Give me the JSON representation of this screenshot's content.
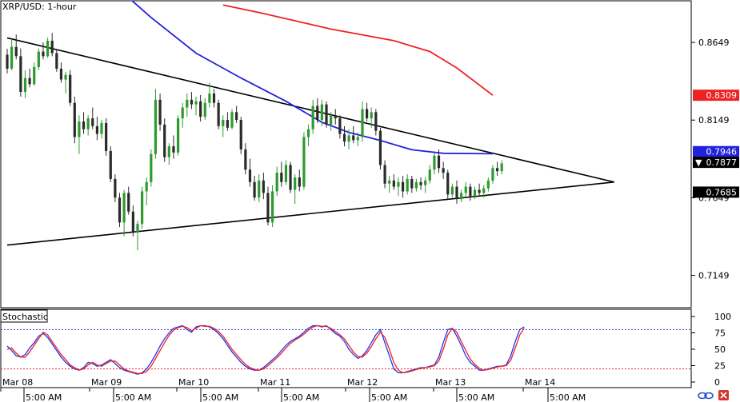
{
  "header": {
    "title": "XRP/USD: 1-hour"
  },
  "colors": {
    "bull_candle": "#2e9a2e",
    "bear_candle": "#2a2a2a",
    "ma_fast": "#2222dd",
    "ma_slow": "#ee2222",
    "trendline": "#000000",
    "stoch_k": "#2233ee",
    "stoch_d": "#ee2222"
  },
  "chart_data": [
    {
      "type": "candlestick",
      "title": "XRP/USD: 1-hour",
      "x_ticks": [
        "Mar 08",
        "5:00 AM",
        "Mar 09",
        "5:00 AM",
        "Mar 10",
        "5:00 AM",
        "Mar 11",
        "5:00 AM",
        "Mar 12",
        "5:00 AM",
        "Mar 13",
        "5:00 AM",
        "Mar 14",
        "5:00 AM"
      ],
      "y_ticks": [
        "0.8649",
        "0.8149",
        "0.7649",
        "0.7149"
      ],
      "ylim": [
        0.6941,
        0.8917
      ],
      "price_badges": [
        {
          "label": "0.8309",
          "value": 0.8309,
          "color": "#ee2222",
          "text_color": "#ffffff",
          "marker": ""
        },
        {
          "label": "0.7946",
          "value": 0.7946,
          "color": "#2222dd",
          "text_color": "#ffffff",
          "marker": ""
        },
        {
          "label": "0.7877",
          "value": 0.7877,
          "color": "#000000",
          "text_color": "#ffffff",
          "marker": "▼"
        },
        {
          "label": "0.7685",
          "value": 0.7685,
          "color": "#000000",
          "text_color": "#ffffff",
          "marker": ""
        }
      ],
      "trendlines": [
        {
          "from": [
            0,
            0.8678
          ],
          "to": [
            135,
            0.775
          ]
        },
        {
          "from": [
            0,
            0.7344
          ],
          "to": [
            135,
            0.775
          ]
        }
      ],
      "moving_averages": [
        {
          "color": "ma_fast",
          "points": [
            [
              0,
              0.915
            ],
            [
              20,
              0.9115
            ],
            [
              32,
              0.881
            ],
            [
              42,
              0.858
            ],
            [
              52,
              0.842
            ],
            [
              62,
              0.827
            ],
            [
              70,
              0.8135
            ],
            [
              76,
              0.807
            ],
            [
              83,
              0.8018
            ],
            [
              90,
              0.7958
            ],
            [
              97,
              0.7935
            ],
            [
              108,
              0.7932
            ]
          ]
        },
        {
          "color": "ma_slow",
          "points": [
            [
              48,
              0.889
            ],
            [
              57,
              0.8835
            ],
            [
              72,
              0.8735
            ],
            [
              86,
              0.866
            ],
            [
              94,
              0.859
            ],
            [
              100,
              0.8485
            ],
            [
              108,
              0.8309
            ]
          ]
        }
      ],
      "candles": [
        [
          0.857,
          0.8608,
          0.845,
          0.848
        ],
        [
          0.848,
          0.867,
          0.847,
          0.862
        ],
        [
          0.862,
          0.87,
          0.854,
          0.856
        ],
        [
          0.856,
          0.861,
          0.83,
          0.833
        ],
        [
          0.833,
          0.847,
          0.829,
          0.842
        ],
        [
          0.842,
          0.848,
          0.836,
          0.838
        ],
        [
          0.838,
          0.852,
          0.837,
          0.849
        ],
        [
          0.849,
          0.861,
          0.847,
          0.859
        ],
        [
          0.859,
          0.865,
          0.854,
          0.856
        ],
        [
          0.856,
          0.868,
          0.855,
          0.866
        ],
        [
          0.866,
          0.871,
          0.856,
          0.858
        ],
        [
          0.858,
          0.86,
          0.846,
          0.848
        ],
        [
          0.848,
          0.852,
          0.839,
          0.841
        ],
        [
          0.841,
          0.846,
          0.832,
          0.844
        ],
        [
          0.844,
          0.847,
          0.824,
          0.826
        ],
        [
          0.826,
          0.83,
          0.8,
          0.804
        ],
        [
          0.804,
          0.818,
          0.793,
          0.814
        ],
        [
          0.814,
          0.82,
          0.806,
          0.809
        ],
        [
          0.809,
          0.818,
          0.805,
          0.816
        ],
        [
          0.816,
          0.823,
          0.809,
          0.811
        ],
        [
          0.811,
          0.817,
          0.802,
          0.806
        ],
        [
          0.806,
          0.815,
          0.803,
          0.813
        ],
        [
          0.813,
          0.816,
          0.792,
          0.795
        ],
        [
          0.795,
          0.798,
          0.775,
          0.777
        ],
        [
          0.777,
          0.78,
          0.762,
          0.765
        ],
        [
          0.765,
          0.768,
          0.746,
          0.749
        ],
        [
          0.749,
          0.77,
          0.74,
          0.768
        ],
        [
          0.768,
          0.772,
          0.754,
          0.756
        ],
        [
          0.756,
          0.76,
          0.74,
          0.743
        ],
        [
          0.743,
          0.75,
          0.731,
          0.748
        ],
        [
          0.748,
          0.772,
          0.745,
          0.769
        ],
        [
          0.769,
          0.778,
          0.76,
          0.775
        ],
        [
          0.775,
          0.796,
          0.772,
          0.793
        ],
        [
          0.793,
          0.835,
          0.79,
          0.828
        ],
        [
          0.828,
          0.832,
          0.808,
          0.812
        ],
        [
          0.812,
          0.816,
          0.788,
          0.791
        ],
        [
          0.791,
          0.8,
          0.786,
          0.798
        ],
        [
          0.798,
          0.805,
          0.79,
          0.794
        ],
        [
          0.794,
          0.818,
          0.792,
          0.816
        ],
        [
          0.816,
          0.826,
          0.81,
          0.823
        ],
        [
          0.823,
          0.832,
          0.817,
          0.828
        ],
        [
          0.828,
          0.833,
          0.822,
          0.825
        ],
        [
          0.825,
          0.83,
          0.818,
          0.827
        ],
        [
          0.827,
          0.831,
          0.814,
          0.817
        ],
        [
          0.817,
          0.829,
          0.815,
          0.826
        ],
        [
          0.826,
          0.839,
          0.823,
          0.832
        ],
        [
          0.832,
          0.835,
          0.823,
          0.826
        ],
        [
          0.826,
          0.828,
          0.809,
          0.811
        ],
        [
          0.811,
          0.818,
          0.804,
          0.815
        ],
        [
          0.815,
          0.82,
          0.808,
          0.81
        ],
        [
          0.81,
          0.822,
          0.809,
          0.82
        ],
        [
          0.82,
          0.824,
          0.813,
          0.815
        ],
        [
          0.815,
          0.817,
          0.793,
          0.796
        ],
        [
          0.796,
          0.8,
          0.78,
          0.783
        ],
        [
          0.783,
          0.79,
          0.772,
          0.775
        ],
        [
          0.775,
          0.779,
          0.763,
          0.765
        ],
        [
          0.765,
          0.78,
          0.762,
          0.776
        ],
        [
          0.776,
          0.781,
          0.764,
          0.768
        ],
        [
          0.768,
          0.772,
          0.747,
          0.749
        ],
        [
          0.749,
          0.773,
          0.746,
          0.769
        ],
        [
          0.769,
          0.785,
          0.766,
          0.781
        ],
        [
          0.781,
          0.788,
          0.772,
          0.775
        ],
        [
          0.775,
          0.789,
          0.773,
          0.786
        ],
        [
          0.786,
          0.788,
          0.768,
          0.77
        ],
        [
          0.77,
          0.78,
          0.761,
          0.778
        ],
        [
          0.778,
          0.783,
          0.769,
          0.772
        ],
        [
          0.772,
          0.807,
          0.77,
          0.804
        ],
        [
          0.804,
          0.812,
          0.798,
          0.809
        ],
        [
          0.809,
          0.828,
          0.806,
          0.824
        ],
        [
          0.824,
          0.829,
          0.813,
          0.815
        ],
        [
          0.815,
          0.828,
          0.811,
          0.825
        ],
        [
          0.825,
          0.827,
          0.81,
          0.812
        ],
        [
          0.812,
          0.82,
          0.808,
          0.818
        ],
        [
          0.818,
          0.822,
          0.812,
          0.816
        ],
        [
          0.816,
          0.818,
          0.803,
          0.806
        ],
        [
          0.806,
          0.811,
          0.798,
          0.801
        ],
        [
          0.801,
          0.809,
          0.796,
          0.805
        ],
        [
          0.805,
          0.811,
          0.8,
          0.802
        ],
        [
          0.802,
          0.807,
          0.798,
          0.804
        ],
        [
          0.804,
          0.827,
          0.801,
          0.822
        ],
        [
          0.822,
          0.826,
          0.814,
          0.816
        ],
        [
          0.816,
          0.823,
          0.81,
          0.82
        ],
        [
          0.82,
          0.822,
          0.805,
          0.808
        ],
        [
          0.808,
          0.81,
          0.783,
          0.786
        ],
        [
          0.786,
          0.789,
          0.771,
          0.774
        ],
        [
          0.774,
          0.779,
          0.768,
          0.776
        ],
        [
          0.776,
          0.78,
          0.77,
          0.772
        ],
        [
          0.772,
          0.778,
          0.766,
          0.775
        ],
        [
          0.775,
          0.779,
          0.765,
          0.769
        ],
        [
          0.769,
          0.78,
          0.767,
          0.777
        ],
        [
          0.777,
          0.779,
          0.768,
          0.771
        ],
        [
          0.771,
          0.777,
          0.769,
          0.775
        ],
        [
          0.775,
          0.778,
          0.77,
          0.773
        ],
        [
          0.773,
          0.778,
          0.768,
          0.776
        ],
        [
          0.776,
          0.786,
          0.774,
          0.783
        ],
        [
          0.783,
          0.794,
          0.78,
          0.792
        ],
        [
          0.792,
          0.796,
          0.781,
          0.784
        ],
        [
          0.784,
          0.788,
          0.777,
          0.781
        ],
        [
          0.781,
          0.783,
          0.764,
          0.767
        ],
        [
          0.767,
          0.774,
          0.765,
          0.772
        ],
        [
          0.772,
          0.776,
          0.761,
          0.764
        ],
        [
          0.764,
          0.77,
          0.762,
          0.768
        ],
        [
          0.768,
          0.775,
          0.765,
          0.772
        ],
        [
          0.772,
          0.774,
          0.763,
          0.766
        ],
        [
          0.766,
          0.772,
          0.764,
          0.77
        ],
        [
          0.77,
          0.774,
          0.766,
          0.768
        ],
        [
          0.768,
          0.773,
          0.765,
          0.771
        ],
        [
          0.771,
          0.778,
          0.769,
          0.776
        ],
        [
          0.776,
          0.786,
          0.774,
          0.784
        ],
        [
          0.784,
          0.788,
          0.779,
          0.782
        ],
        [
          0.782,
          0.789,
          0.78,
          0.787
        ]
      ]
    },
    {
      "type": "line",
      "title": "Stochastic",
      "y_ticks": [
        "100",
        "75",
        "50",
        "25",
        "0"
      ],
      "ylim": [
        0,
        100
      ],
      "levels": [
        80,
        20
      ],
      "series": [
        {
          "color": "stoch_k",
          "values": [
            55,
            48,
            40,
            38,
            42,
            52,
            60,
            70,
            74,
            68,
            58,
            48,
            38,
            30,
            24,
            20,
            18,
            22,
            30,
            28,
            24,
            26,
            30,
            34,
            28,
            22,
            18,
            16,
            14,
            12,
            14,
            20,
            30,
            42,
            55,
            66,
            75,
            82,
            84,
            86,
            80,
            76,
            84,
            86,
            86,
            84,
            80,
            74,
            66,
            56,
            46,
            38,
            30,
            24,
            20,
            18,
            18,
            22,
            28,
            34,
            40,
            48,
            56,
            62,
            66,
            70,
            76,
            82,
            86,
            86,
            84,
            86,
            80,
            74,
            70,
            62,
            50,
            42,
            36,
            40,
            48,
            60,
            72,
            80,
            60,
            40,
            20,
            14,
            14,
            16,
            18,
            20,
            22,
            22,
            24,
            26,
            38,
            60,
            80,
            82,
            70,
            56,
            40,
            30,
            24,
            18,
            18,
            20,
            22,
            24,
            24,
            26,
            40,
            62,
            80,
            84
          ]
        },
        {
          "color": "stoch_d",
          "values": [
            50,
            52,
            44,
            38,
            38,
            46,
            56,
            66,
            76,
            72,
            62,
            52,
            42,
            34,
            26,
            22,
            18,
            20,
            26,
            30,
            26,
            24,
            28,
            32,
            32,
            26,
            20,
            17,
            15,
            13,
            13,
            16,
            24,
            36,
            48,
            60,
            71,
            79,
            83,
            85,
            83,
            78,
            82,
            86,
            85,
            85,
            82,
            77,
            70,
            60,
            50,
            42,
            34,
            27,
            22,
            19,
            18,
            20,
            25,
            31,
            37,
            44,
            52,
            59,
            64,
            68,
            73,
            79,
            84,
            86,
            85,
            85,
            82,
            77,
            72,
            66,
            56,
            46,
            39,
            38,
            44,
            54,
            66,
            76,
            68,
            50,
            30,
            18,
            14,
            15,
            17,
            19,
            21,
            22,
            23,
            25,
            32,
            50,
            72,
            82,
            76,
            62,
            48,
            35,
            27,
            21,
            18,
            19,
            21,
            23,
            24,
            25,
            33,
            52,
            72,
            82
          ]
        }
      ]
    }
  ]
}
